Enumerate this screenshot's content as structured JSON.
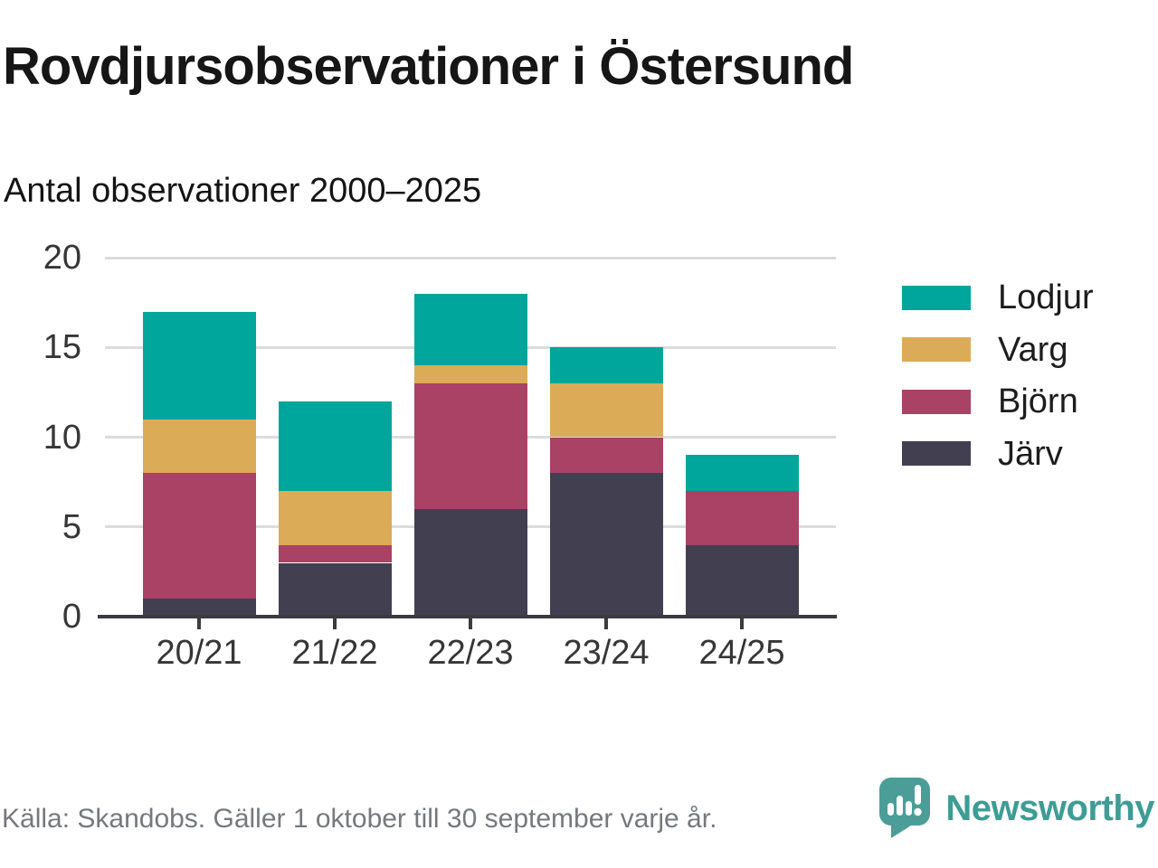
{
  "header": {
    "title": "Rovdjursobservationer i Östersund",
    "subtitle": "Antal observationer 2000–2025"
  },
  "chart_data": {
    "type": "bar",
    "stacked": true,
    "title": "Rovdjursobservationer i Östersund",
    "subtitle": "Antal observationer 2000–2025",
    "xlabel": "",
    "ylabel": "",
    "categories": [
      "20/21",
      "21/22",
      "22/23",
      "23/24",
      "24/25"
    ],
    "series": [
      {
        "name": "Järv",
        "color": "#423f50",
        "values": [
          1,
          3,
          6,
          8,
          4
        ]
      },
      {
        "name": "Björn",
        "color": "#a94265",
        "values": [
          7,
          1,
          7,
          2,
          3
        ]
      },
      {
        "name": "Varg",
        "color": "#dbab57",
        "values": [
          3,
          3,
          1,
          3,
          0
        ]
      },
      {
        "name": "Lodjur",
        "color": "#00a59b",
        "values": [
          6,
          5,
          4,
          2,
          2
        ]
      }
    ],
    "stack_totals": [
      17,
      12,
      18,
      15,
      9
    ],
    "ylim": [
      0,
      20
    ],
    "yticks": [
      0,
      5,
      10,
      15,
      20
    ],
    "grid": true,
    "legend_position": "right",
    "legend_order_top_to_bottom": [
      "Lodjur",
      "Varg",
      "Björn",
      "Järv"
    ]
  },
  "footer": {
    "source": "Källa: Skandobs. Gäller 1 oktober till 30 september varje år.",
    "brand": "Newsworthy"
  },
  "colors": {
    "lodjur": "#00a59b",
    "varg": "#dbab57",
    "bjorn": "#a94265",
    "jarv": "#423f50",
    "gridline": "#dcdcdc",
    "axis": "#3b3a40",
    "tick_label": "#363636",
    "source_text": "#75797e",
    "brand_teal": "#3e9c95"
  }
}
